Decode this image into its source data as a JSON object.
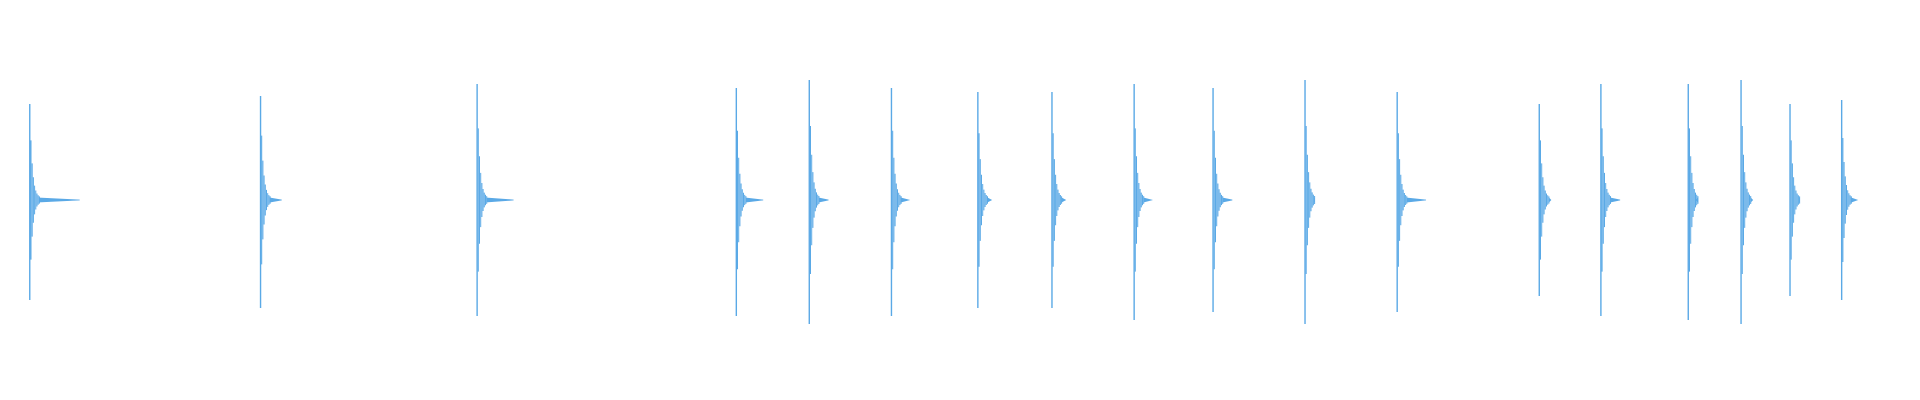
{
  "waveform": {
    "color": "#5aa9e6",
    "background": "#ffffff",
    "peaks": [
      {
        "t": 0.0155,
        "up": 0.24,
        "down": 0.25,
        "tail": 0.026
      },
      {
        "t": 0.1357,
        "up": 0.26,
        "down": 0.27,
        "tail": 0.011
      },
      {
        "t": 0.2485,
        "up": 0.29,
        "down": 0.29,
        "tail": 0.019
      },
      {
        "t": 0.3835,
        "up": 0.28,
        "down": 0.29,
        "tail": 0.014
      },
      {
        "t": 0.4215,
        "up": 0.3,
        "down": 0.31,
        "tail": 0.01
      },
      {
        "t": 0.4643,
        "up": 0.28,
        "down": 0.29,
        "tail": 0.009
      },
      {
        "t": 0.5093,
        "up": 0.27,
        "down": 0.27,
        "tail": 0.007
      },
      {
        "t": 0.5479,
        "up": 0.27,
        "down": 0.27,
        "tail": 0.007
      },
      {
        "t": 0.5907,
        "up": 0.29,
        "down": 0.3,
        "tail": 0.009
      },
      {
        "t": 0.6318,
        "up": 0.28,
        "down": 0.28,
        "tail": 0.01
      },
      {
        "t": 0.6797,
        "up": 0.3,
        "down": 0.31,
        "tail": 0.005
      },
      {
        "t": 0.7277,
        "up": 0.27,
        "down": 0.28,
        "tail": 0.015
      },
      {
        "t": 0.8017,
        "up": 0.24,
        "down": 0.24,
        "tail": 0.006
      },
      {
        "t": 0.8338,
        "up": 0.29,
        "down": 0.29,
        "tail": 0.01
      },
      {
        "t": 0.8793,
        "up": 0.29,
        "down": 0.3,
        "tail": 0.004
      },
      {
        "t": 0.9068,
        "up": 0.3,
        "down": 0.31,
        "tail": 0.006
      },
      {
        "t": 0.9323,
        "up": 0.24,
        "down": 0.24,
        "tail": 0.005
      },
      {
        "t": 0.9592,
        "up": 0.25,
        "down": 0.25,
        "tail": 0.008
      }
    ]
  }
}
